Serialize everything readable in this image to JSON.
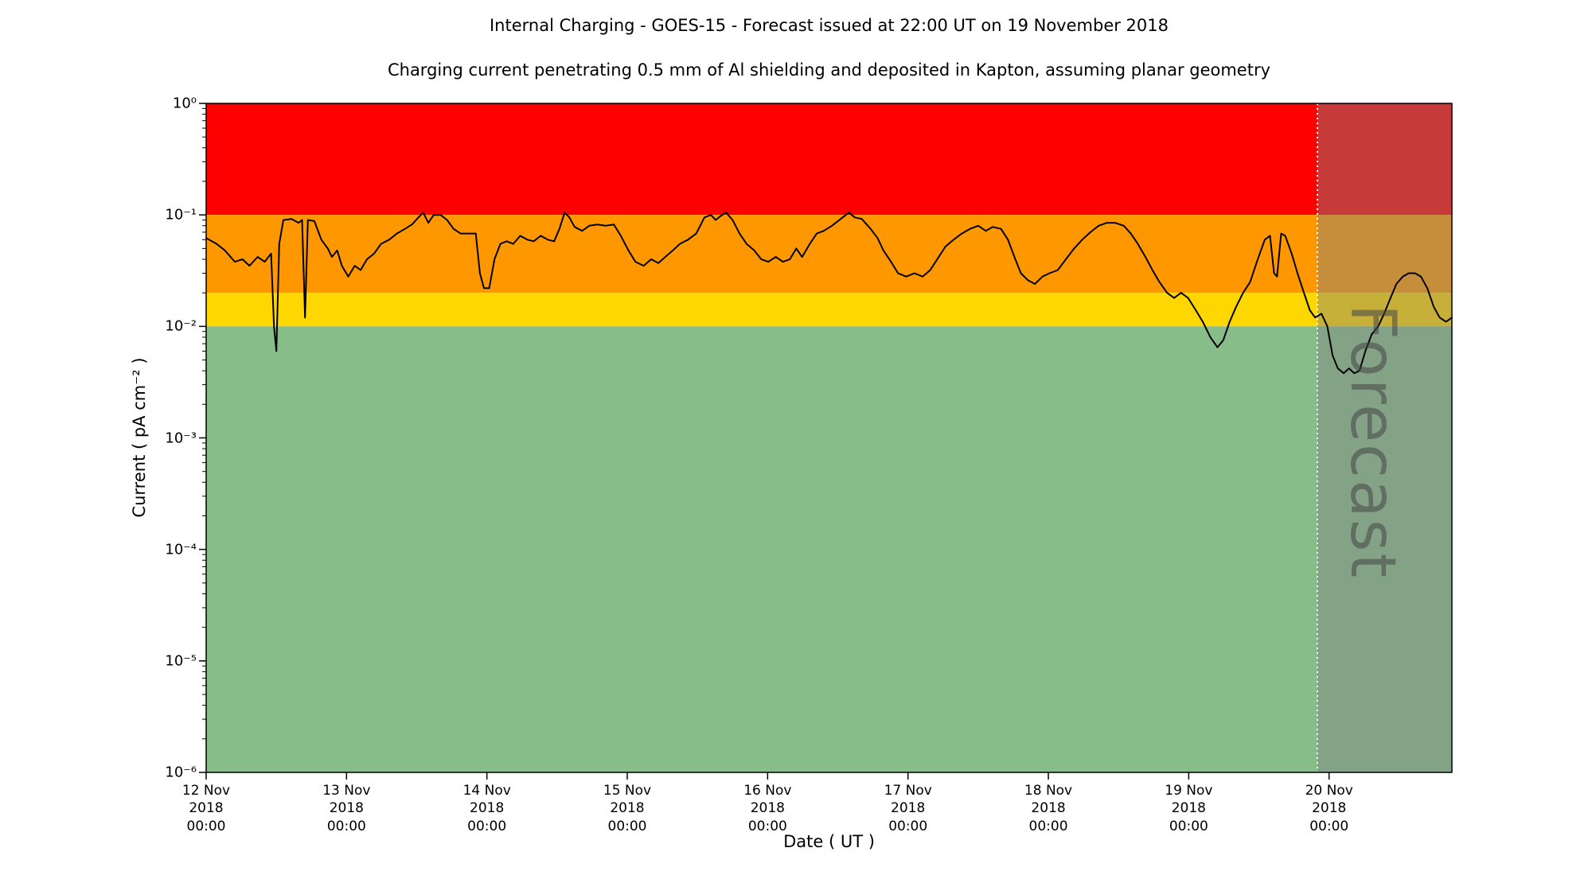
{
  "chart_data": {
    "type": "line",
    "title": "Internal Charging - GOES-15 - Forecast issued at 22:00 UT on 19 November 2018",
    "subtitle": "Charging current penetrating 0.5 mm of Al shielding and deposited in Kapton, assuming planar geometry",
    "xlabel": "Date ( UT )",
    "ylabel": "Current ( pA cm⁻² )",
    "y_scale": "log",
    "ylim": [
      1e-06,
      1.0
    ],
    "grid": false,
    "legend": "none",
    "y_ticks": [
      {
        "label": "10⁰",
        "value": 1
      },
      {
        "label": "10⁻¹",
        "value": 0.1
      },
      {
        "label": "10⁻²",
        "value": 0.01
      },
      {
        "label": "10⁻³",
        "value": 0.001
      },
      {
        "label": "10⁻⁴",
        "value": 0.0001
      },
      {
        "label": "10⁻⁵",
        "value": 1e-05
      },
      {
        "label": "10⁻⁶",
        "value": 1e-06
      }
    ],
    "x_range_hours": [
      0,
      213
    ],
    "x_ticks": [
      {
        "lines": [
          "12 Nov",
          "2018",
          "00:00"
        ],
        "hours": 0
      },
      {
        "lines": [
          "13 Nov",
          "2018",
          "00:00"
        ],
        "hours": 24
      },
      {
        "lines": [
          "14 Nov",
          "2018",
          "00:00"
        ],
        "hours": 48
      },
      {
        "lines": [
          "15 Nov",
          "2018",
          "00:00"
        ],
        "hours": 72
      },
      {
        "lines": [
          "16 Nov",
          "2018",
          "00:00"
        ],
        "hours": 96
      },
      {
        "lines": [
          "17 Nov",
          "2018",
          "00:00"
        ],
        "hours": 120
      },
      {
        "lines": [
          "18 Nov",
          "2018",
          "00:00"
        ],
        "hours": 144
      },
      {
        "lines": [
          "19 Nov",
          "2018",
          "00:00"
        ],
        "hours": 168
      },
      {
        "lines": [
          "20 Nov",
          "2018",
          "00:00"
        ],
        "hours": 192
      }
    ],
    "threshold_bands": [
      {
        "name": "red",
        "range": [
          0.1,
          1.0
        ],
        "color": "#ff0000"
      },
      {
        "name": "orange",
        "range": [
          0.02,
          0.1
        ],
        "color": "#ff9800"
      },
      {
        "name": "yellow",
        "range": [
          0.01,
          0.02
        ],
        "color": "#ffd700"
      },
      {
        "name": "green",
        "range": [
          1e-06,
          0.01
        ],
        "color": "#87bd89"
      }
    ],
    "forecast": {
      "label": "Forecast",
      "start_hours": 190,
      "start_time_ut": "19 Nov 2018 22:00",
      "overlay_color": "rgba(128,128,128,0.45)",
      "divider_color": "#ffffff"
    },
    "series": [
      {
        "name": "charging-current",
        "color": "#000000",
        "units": "pA cm⁻²",
        "points": [
          [
            0,
            0.062
          ],
          [
            1.8,
            0.055
          ],
          [
            3.2,
            0.048
          ],
          [
            4.9,
            0.038
          ],
          [
            6.2,
            0.04
          ],
          [
            7.4,
            0.035
          ],
          [
            8.8,
            0.042
          ],
          [
            10.0,
            0.038
          ],
          [
            11.1,
            0.045
          ],
          [
            11.6,
            0.01
          ],
          [
            12.0,
            0.006
          ],
          [
            12.5,
            0.055
          ],
          [
            13.2,
            0.09
          ],
          [
            14.6,
            0.092
          ],
          [
            15.8,
            0.085
          ],
          [
            16.4,
            0.09
          ],
          [
            16.9,
            0.012
          ],
          [
            17.4,
            0.09
          ],
          [
            18.5,
            0.088
          ],
          [
            19.7,
            0.06
          ],
          [
            20.8,
            0.05
          ],
          [
            21.5,
            0.042
          ],
          [
            22.4,
            0.048
          ],
          [
            23.2,
            0.035
          ],
          [
            24.3,
            0.028
          ],
          [
            25.4,
            0.035
          ],
          [
            26.4,
            0.032
          ],
          [
            27.5,
            0.04
          ],
          [
            28.7,
            0.045
          ],
          [
            29.9,
            0.055
          ],
          [
            31.3,
            0.06
          ],
          [
            32.6,
            0.068
          ],
          [
            34.0,
            0.075
          ],
          [
            35.2,
            0.082
          ],
          [
            36.3,
            0.095
          ],
          [
            37.1,
            0.105
          ],
          [
            38.0,
            0.085
          ],
          [
            38.9,
            0.1
          ],
          [
            40.1,
            0.1
          ],
          [
            41.2,
            0.09
          ],
          [
            42.3,
            0.075
          ],
          [
            43.5,
            0.068
          ],
          [
            44.9,
            0.068
          ],
          [
            46.1,
            0.068
          ],
          [
            46.8,
            0.03
          ],
          [
            47.5,
            0.022
          ],
          [
            48.4,
            0.022
          ],
          [
            49.3,
            0.04
          ],
          [
            50.3,
            0.055
          ],
          [
            51.4,
            0.058
          ],
          [
            52.5,
            0.055
          ],
          [
            53.7,
            0.065
          ],
          [
            54.9,
            0.06
          ],
          [
            56.0,
            0.058
          ],
          [
            57.2,
            0.065
          ],
          [
            58.4,
            0.06
          ],
          [
            59.5,
            0.058
          ],
          [
            60.4,
            0.075
          ],
          [
            61.3,
            0.105
          ],
          [
            62.1,
            0.095
          ],
          [
            63.0,
            0.078
          ],
          [
            64.3,
            0.072
          ],
          [
            65.5,
            0.08
          ],
          [
            66.9,
            0.082
          ],
          [
            68.3,
            0.08
          ],
          [
            69.7,
            0.082
          ],
          [
            70.9,
            0.065
          ],
          [
            72.2,
            0.048
          ],
          [
            73.4,
            0.038
          ],
          [
            74.8,
            0.035
          ],
          [
            76.1,
            0.04
          ],
          [
            77.3,
            0.037
          ],
          [
            78.5,
            0.042
          ],
          [
            79.8,
            0.048
          ],
          [
            81.0,
            0.055
          ],
          [
            82.4,
            0.06
          ],
          [
            83.8,
            0.068
          ],
          [
            85.2,
            0.095
          ],
          [
            86.3,
            0.1
          ],
          [
            87.1,
            0.09
          ],
          [
            88.0,
            0.098
          ],
          [
            88.9,
            0.105
          ],
          [
            90.0,
            0.09
          ],
          [
            91.2,
            0.068
          ],
          [
            92.4,
            0.055
          ],
          [
            93.7,
            0.048
          ],
          [
            94.9,
            0.04
          ],
          [
            96.1,
            0.038
          ],
          [
            97.4,
            0.042
          ],
          [
            98.6,
            0.038
          ],
          [
            99.8,
            0.04
          ],
          [
            100.9,
            0.05
          ],
          [
            101.9,
            0.042
          ],
          [
            103.2,
            0.055
          ],
          [
            104.4,
            0.068
          ],
          [
            105.6,
            0.072
          ],
          [
            107.0,
            0.08
          ],
          [
            108.5,
            0.092
          ],
          [
            109.9,
            0.105
          ],
          [
            110.9,
            0.095
          ],
          [
            112.1,
            0.092
          ],
          [
            113.6,
            0.075
          ],
          [
            114.8,
            0.062
          ],
          [
            115.8,
            0.048
          ],
          [
            117.1,
            0.038
          ],
          [
            118.3,
            0.03
          ],
          [
            119.7,
            0.028
          ],
          [
            121.1,
            0.03
          ],
          [
            122.5,
            0.028
          ],
          [
            123.8,
            0.032
          ],
          [
            125.0,
            0.04
          ],
          [
            126.4,
            0.052
          ],
          [
            127.8,
            0.06
          ],
          [
            129.2,
            0.068
          ],
          [
            130.6,
            0.075
          ],
          [
            132.0,
            0.08
          ],
          [
            133.3,
            0.072
          ],
          [
            134.5,
            0.078
          ],
          [
            135.9,
            0.075
          ],
          [
            137.1,
            0.06
          ],
          [
            138.2,
            0.042
          ],
          [
            139.3,
            0.03
          ],
          [
            140.5,
            0.026
          ],
          [
            141.7,
            0.024
          ],
          [
            143.0,
            0.028
          ],
          [
            144.2,
            0.03
          ],
          [
            145.6,
            0.032
          ],
          [
            147.0,
            0.04
          ],
          [
            148.4,
            0.05
          ],
          [
            149.8,
            0.06
          ],
          [
            151.2,
            0.07
          ],
          [
            152.6,
            0.08
          ],
          [
            154.0,
            0.085
          ],
          [
            155.4,
            0.085
          ],
          [
            156.9,
            0.08
          ],
          [
            158.1,
            0.068
          ],
          [
            159.3,
            0.055
          ],
          [
            160.6,
            0.042
          ],
          [
            161.8,
            0.032
          ],
          [
            163.0,
            0.025
          ],
          [
            164.3,
            0.02
          ],
          [
            165.5,
            0.018
          ],
          [
            166.7,
            0.02
          ],
          [
            167.9,
            0.018
          ],
          [
            169.2,
            0.014
          ],
          [
            170.4,
            0.011
          ],
          [
            171.7,
            0.008
          ],
          [
            172.9,
            0.0065
          ],
          [
            173.9,
            0.0075
          ],
          [
            175.0,
            0.011
          ],
          [
            176.1,
            0.015
          ],
          [
            177.3,
            0.02
          ],
          [
            178.5,
            0.025
          ],
          [
            179.8,
            0.04
          ],
          [
            181.0,
            0.06
          ],
          [
            181.9,
            0.065
          ],
          [
            182.6,
            0.03
          ],
          [
            183.1,
            0.028
          ],
          [
            183.8,
            0.068
          ],
          [
            184.5,
            0.065
          ],
          [
            185.6,
            0.045
          ],
          [
            186.6,
            0.03
          ],
          [
            187.7,
            0.02
          ],
          [
            188.7,
            0.014
          ],
          [
            189.6,
            0.012
          ],
          [
            190.7,
            0.013
          ],
          [
            191.7,
            0.01
          ],
          [
            192.6,
            0.0055
          ],
          [
            193.5,
            0.0042
          ],
          [
            194.5,
            0.0038
          ],
          [
            195.4,
            0.0042
          ],
          [
            196.3,
            0.0038
          ],
          [
            197.2,
            0.004
          ],
          [
            198.2,
            0.006
          ],
          [
            199.3,
            0.0085
          ],
          [
            200.4,
            0.01
          ],
          [
            201.4,
            0.013
          ],
          [
            202.5,
            0.018
          ],
          [
            203.5,
            0.024
          ],
          [
            204.6,
            0.028
          ],
          [
            205.6,
            0.03
          ],
          [
            206.7,
            0.03
          ],
          [
            207.7,
            0.028
          ],
          [
            208.8,
            0.022
          ],
          [
            209.9,
            0.015
          ],
          [
            210.9,
            0.012
          ],
          [
            212.0,
            0.011
          ],
          [
            213.0,
            0.012
          ]
        ]
      }
    ]
  }
}
